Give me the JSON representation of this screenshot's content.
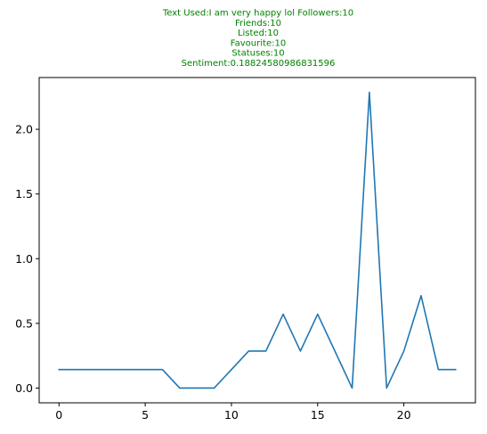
{
  "chart_data": {
    "type": "line",
    "title_lines": [
      "Text Used:I am very happy lol Followers:10",
      "Friends:10",
      "Listed:10",
      "Favourite:10",
      "Statuses:10",
      "Sentiment:0.18824580986831596"
    ],
    "title_color": "#008000",
    "xlabel": "",
    "ylabel": "",
    "xlim": [
      -1.15,
      24.15
    ],
    "ylim": [
      -0.114,
      2.4
    ],
    "xticks": [
      0,
      5,
      10,
      15,
      20
    ],
    "yticks": [
      0.0,
      0.5,
      1.0,
      1.5,
      2.0
    ],
    "xtick_labels": [
      "0",
      "5",
      "10",
      "15",
      "20"
    ],
    "ytick_labels": [
      "0.0",
      "0.5",
      "1.0",
      "1.5",
      "2.0"
    ],
    "grid": false,
    "series": [
      {
        "color": "#1f77b4",
        "x": [
          0,
          1,
          2,
          3,
          4,
          5,
          6,
          7,
          8,
          9,
          10,
          11,
          12,
          13,
          14,
          15,
          16,
          17,
          18,
          19,
          20,
          21,
          22,
          23
        ],
        "y": [
          0.143,
          0.143,
          0.143,
          0.143,
          0.143,
          0.143,
          0.143,
          0.0,
          0.0,
          0.0,
          0.143,
          0.286,
          0.286,
          0.571,
          0.286,
          0.571,
          0.286,
          0.0,
          2.286,
          0.0,
          0.286,
          0.714,
          0.143,
          0.143
        ]
      }
    ]
  }
}
